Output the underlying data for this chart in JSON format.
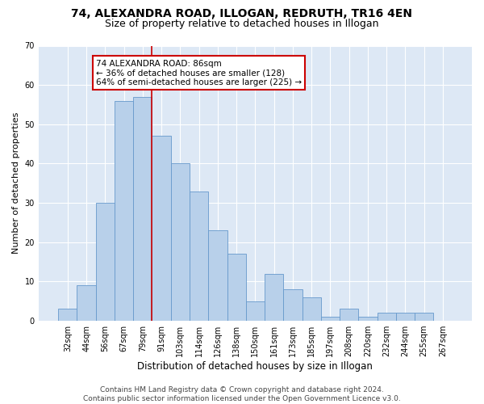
{
  "title1": "74, ALEXANDRA ROAD, ILLOGAN, REDRUTH, TR16 4EN",
  "title2": "Size of property relative to detached houses in Illogan",
  "xlabel": "Distribution of detached houses by size in Illogan",
  "ylabel": "Number of detached properties",
  "categories": [
    "32sqm",
    "44sqm",
    "56sqm",
    "67sqm",
    "79sqm",
    "91sqm",
    "103sqm",
    "114sqm",
    "126sqm",
    "138sqm",
    "150sqm",
    "161sqm",
    "173sqm",
    "185sqm",
    "197sqm",
    "208sqm",
    "220sqm",
    "232sqm",
    "244sqm",
    "255sqm",
    "267sqm"
  ],
  "values": [
    3,
    9,
    30,
    56,
    57,
    47,
    40,
    33,
    23,
    17,
    5,
    12,
    8,
    6,
    1,
    3,
    1,
    2,
    2,
    2,
    0
  ],
  "bar_color": "#b8d0ea",
  "bar_edge_color": "#6699cc",
  "bg_color": "#dde8f5",
  "grid_color": "#ffffff",
  "annotation_box_text": "74 ALEXANDRA ROAD: 86sqm\n← 36% of detached houses are smaller (128)\n64% of semi-detached houses are larger (225) →",
  "annotation_box_color": "#ffffff",
  "annotation_box_edge_color": "#cc0000",
  "vline_color": "#cc0000",
  "ylim": [
    0,
    70
  ],
  "yticks": [
    0,
    10,
    20,
    30,
    40,
    50,
    60,
    70
  ],
  "footer1": "Contains HM Land Registry data © Crown copyright and database right 2024.",
  "footer2": "Contains public sector information licensed under the Open Government Licence v3.0.",
  "fig_bg_color": "#ffffff",
  "title1_fontsize": 10,
  "title2_fontsize": 9,
  "xlabel_fontsize": 8.5,
  "ylabel_fontsize": 8,
  "tick_fontsize": 7,
  "footer_fontsize": 6.5,
  "annot_fontsize": 7.5
}
